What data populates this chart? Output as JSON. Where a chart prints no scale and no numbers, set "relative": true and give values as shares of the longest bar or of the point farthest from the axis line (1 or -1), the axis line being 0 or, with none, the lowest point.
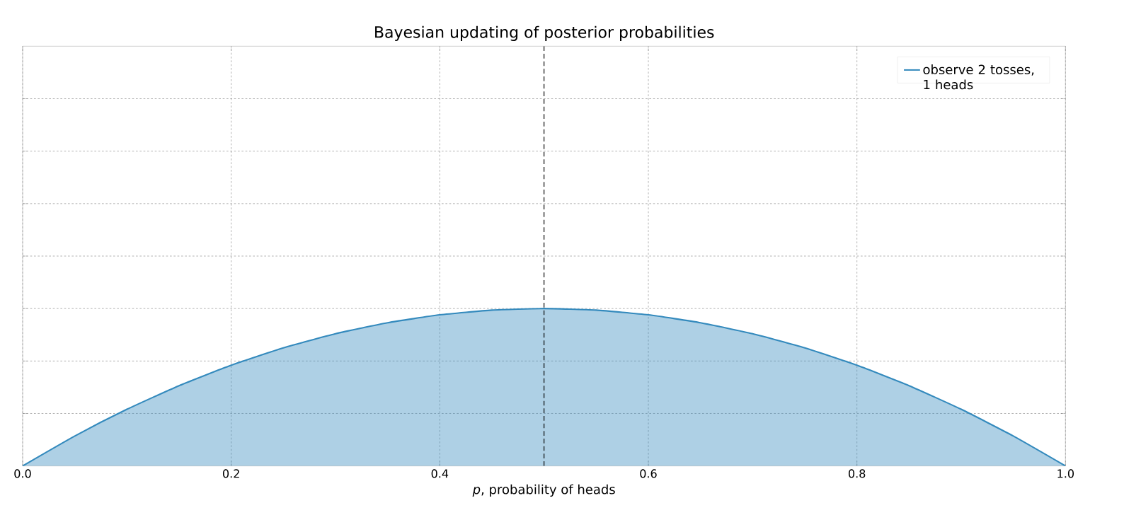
{
  "chart_data": {
    "type": "area",
    "title": "Bayesian updating of posterior probabilities",
    "xlabel": "*p*, probability of heads",
    "relative": true,
    "x": [
      0.0,
      0.05,
      0.1,
      0.15,
      0.2,
      0.25,
      0.3,
      0.35,
      0.4,
      0.45,
      0.5,
      0.55,
      0.6,
      0.65,
      0.7,
      0.75,
      0.8,
      0.85,
      0.9,
      0.95,
      1.0
    ],
    "series": [
      {
        "name": "observe 2 tosses, 1 heads",
        "color": "#348abd",
        "values": [
          0.0,
          0.19,
          0.36,
          0.51,
          0.64,
          0.75,
          0.84,
          0.91,
          0.96,
          0.99,
          1.0,
          0.99,
          0.96,
          0.91,
          0.84,
          0.75,
          0.64,
          0.51,
          0.36,
          0.19,
          0.0
        ]
      }
    ],
    "xlim": [
      0,
      1
    ],
    "xticks": [
      {
        "value": 0,
        "label": "0.0"
      },
      {
        "value": 0.2,
        "label": "0.2"
      },
      {
        "value": 0.4,
        "label": "0.4"
      },
      {
        "value": 0.6,
        "label": "0.6"
      },
      {
        "value": 0.8,
        "label": "0.8"
      },
      {
        "value": 1,
        "label": "1.0"
      }
    ],
    "ref_lines": [
      {
        "axis": "x",
        "value": 0.5,
        "color": "#000000",
        "line_style": "dashed"
      }
    ],
    "grid": true,
    "legend": "top right",
    "tick_labels": "x"
  }
}
